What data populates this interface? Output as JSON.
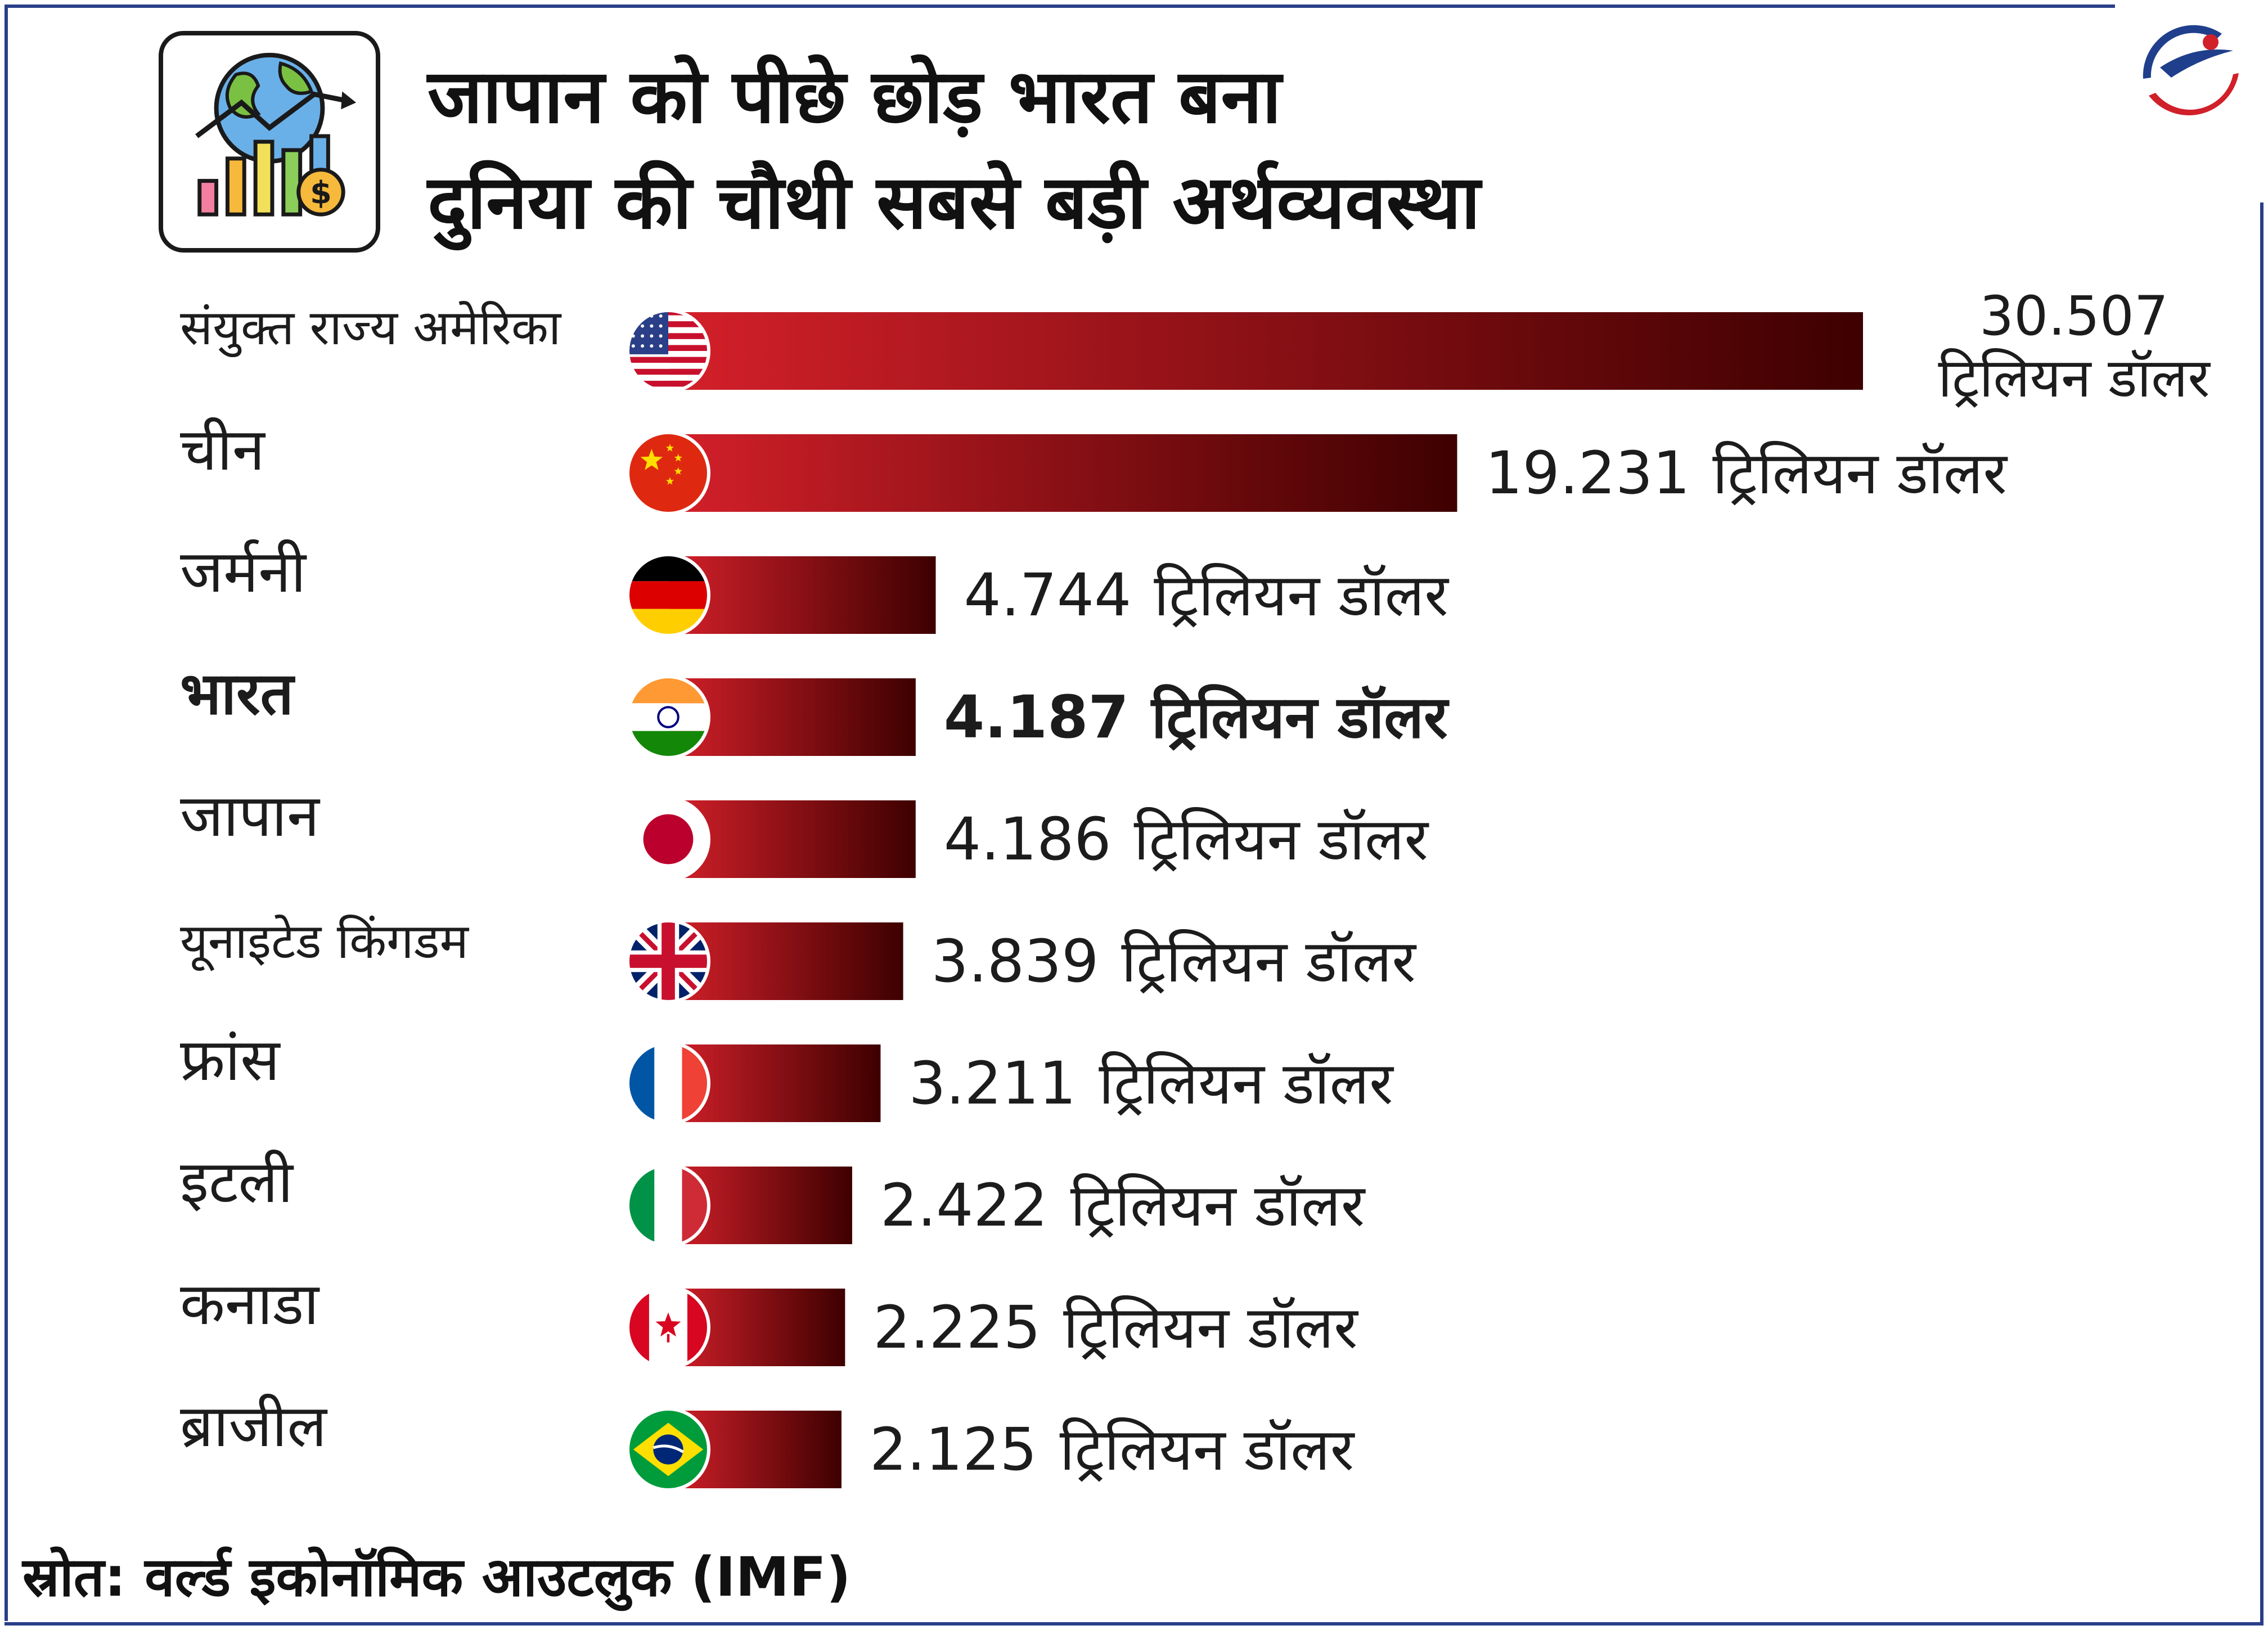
{
  "title_line1": "जापान को पीछे छोड़ भारत बना",
  "title_line2": "दुनिया की चौथी सबसे बड़ी अर्थव्यवस्था",
  "source": "स्रोत: वर्ल्ड इकोनॉमिक आउटलुक (IMF)",
  "colors": {
    "bar_start": "#d4202a",
    "bar_end": "#3e0000",
    "frame": "#2a3f88"
  },
  "chart_data": {
    "type": "bar",
    "orientation": "horizontal",
    "unit": "ट्रिलियन डॉलर",
    "categories": [
      "संयुक्त राज्य अमेरिका",
      "चीन",
      "जर्मनी",
      "भारत",
      "जापान",
      "यूनाइटेड किंगडम",
      "फ्रांस",
      "इटली",
      "कनाडा",
      "ब्राजील"
    ],
    "values": [
      30.507,
      19.231,
      4.744,
      4.187,
      4.186,
      3.839,
      3.211,
      2.422,
      2.225,
      2.125
    ],
    "value_labels": [
      "30.507",
      "19.231",
      "4.744",
      "4.187",
      "4.186",
      "3.839",
      "3.211",
      "2.422",
      "2.225",
      "2.125"
    ],
    "flags": [
      "us-flag-icon",
      "china-flag-icon",
      "germany-flag-icon",
      "india-flag-icon",
      "japan-flag-icon",
      "uk-flag-icon",
      "france-flag-icon",
      "italy-flag-icon",
      "canada-flag-icon",
      "brazil-flag-icon"
    ],
    "highlight": "भारत",
    "title": "",
    "xlabel": "",
    "ylabel": ""
  }
}
